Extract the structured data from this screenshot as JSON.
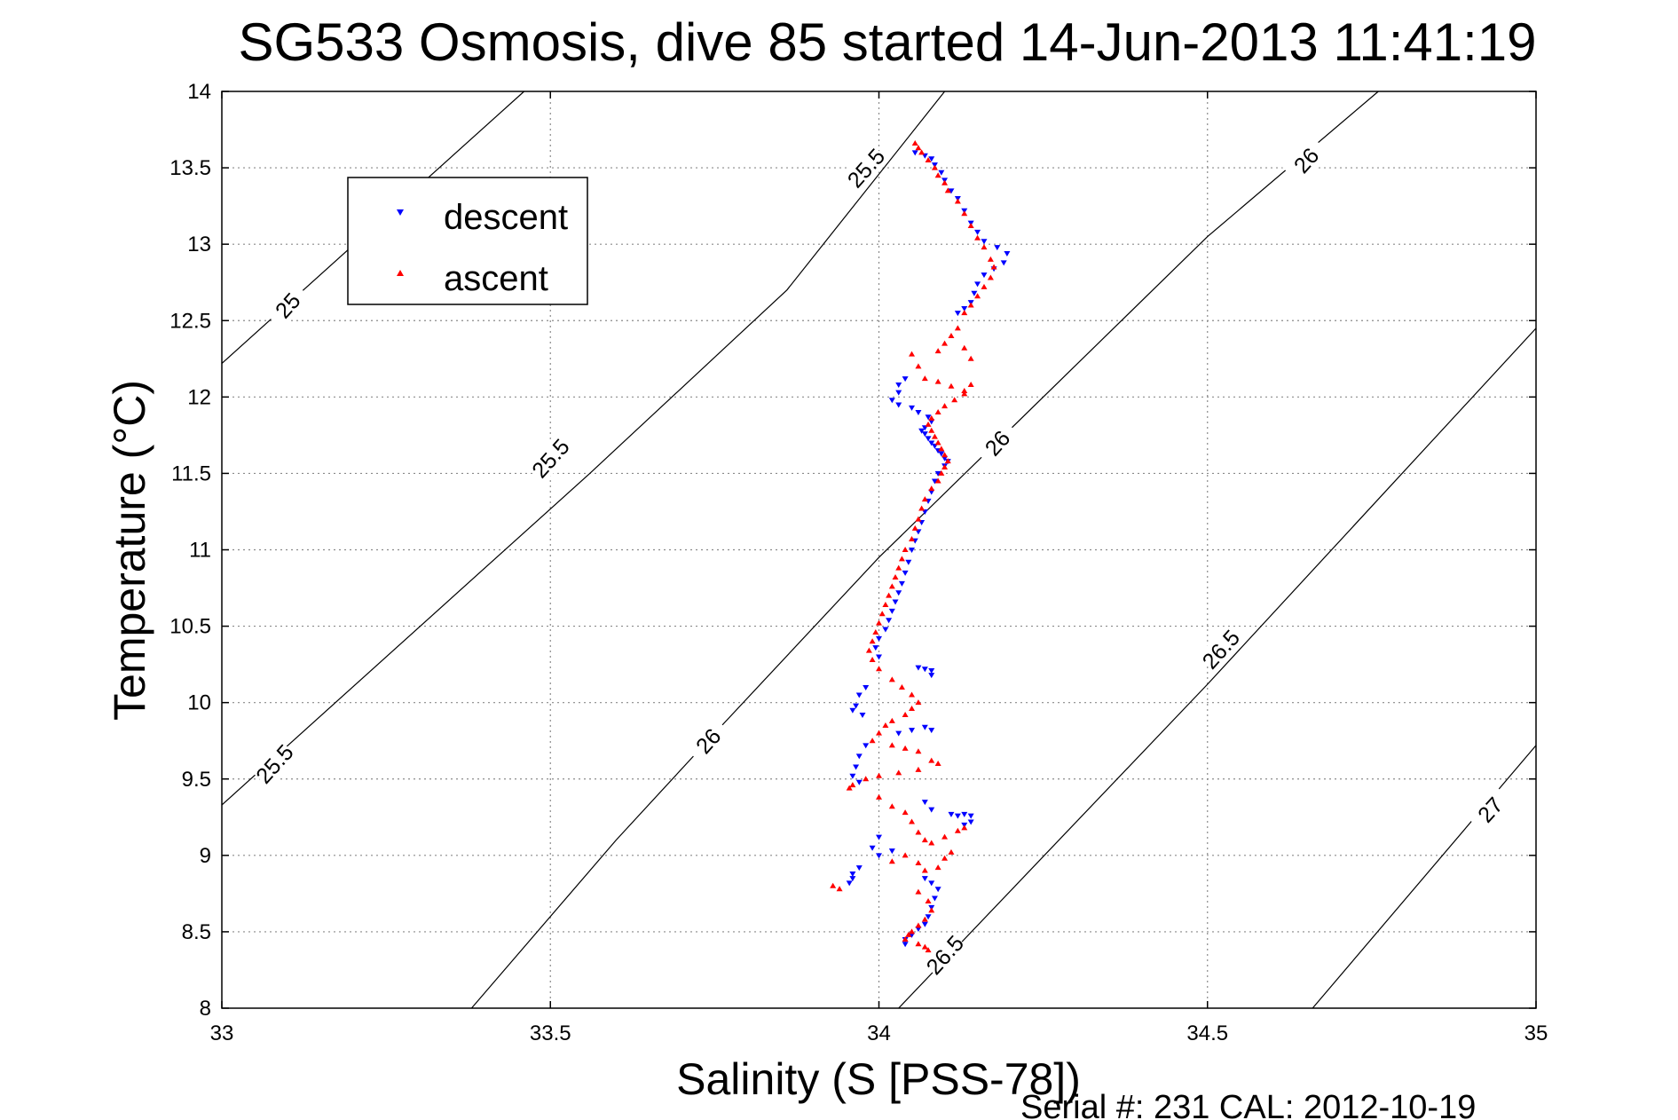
{
  "chart_data": {
    "type": "scatter",
    "title": "SG533 Osmosis, dive 85 started 14-Jun-2013 11:41:19",
    "xlabel": "Salinity (S [PSS-78])",
    "ylabel": "Temperature (°C)",
    "xlim": [
      33,
      35
    ],
    "ylim": [
      8,
      14
    ],
    "x_ticks": [
      "33",
      "33.5",
      "34",
      "34.5",
      "35"
    ],
    "y_ticks": [
      "8",
      "8.5",
      "9",
      "9.5",
      "10",
      "10.5",
      "11",
      "11.5",
      "12",
      "12.5",
      "13",
      "13.5",
      "14"
    ],
    "grid": true,
    "legend_placement": "upper-left",
    "footer": "Serial #: 231  CAL: 2012-10-19",
    "isopycnals": [
      {
        "label": "25",
        "points": [
          [
            33.0,
            12.22
          ],
          [
            33.46,
            14.0
          ]
        ],
        "label_at": [
          33.1,
          12.6
        ]
      },
      {
        "label": "25.5",
        "points": [
          [
            33.0,
            9.33
          ],
          [
            33.56,
            11.5
          ],
          [
            33.86,
            12.7
          ],
          [
            34.1,
            14.0
          ]
        ],
        "label_at": [
          33.5,
          11.6
        ]
      },
      {
        "label": "25.5",
        "label_at": [
          33.08,
          9.6
        ]
      },
      {
        "label": "25.5",
        "label_at": [
          33.98,
          13.5
        ]
      },
      {
        "label": "26",
        "points": [
          [
            33.38,
            8.0
          ],
          [
            33.6,
            9.1
          ],
          [
            33.75,
            9.8
          ],
          [
            34.0,
            10.95
          ],
          [
            34.5,
            13.05
          ],
          [
            34.76,
            14.0
          ]
        ],
        "label_at": [
          33.74,
          9.75
        ]
      },
      {
        "label": "26",
        "label_at": [
          34.18,
          11.7
        ]
      },
      {
        "label": "26",
        "label_at": [
          34.65,
          13.55
        ]
      },
      {
        "label": "26.5",
        "points": [
          [
            34.03,
            8.0
          ],
          [
            34.5,
            10.12
          ],
          [
            35.0,
            12.45
          ]
        ],
        "label_at": [
          34.1,
          8.35
        ]
      },
      {
        "label": "26.5",
        "label_at": [
          34.52,
          10.35
        ]
      },
      {
        "label": "27",
        "points": [
          [
            34.66,
            8.0
          ],
          [
            35.0,
            9.72
          ]
        ],
        "label_at": [
          34.93,
          9.3
        ]
      }
    ],
    "series": [
      {
        "name": "descent",
        "color": "#0000ff",
        "marker": "triangle-down",
        "points": [
          [
            34.055,
            13.6
          ],
          [
            34.07,
            13.58
          ],
          [
            34.08,
            13.56
          ],
          [
            34.085,
            13.52
          ],
          [
            34.095,
            13.47
          ],
          [
            34.1,
            13.42
          ],
          [
            34.11,
            13.35
          ],
          [
            34.12,
            13.3
          ],
          [
            34.13,
            13.22
          ],
          [
            34.14,
            13.14
          ],
          [
            34.15,
            13.08
          ],
          [
            34.16,
            13.02
          ],
          [
            34.18,
            12.98
          ],
          [
            34.195,
            12.94
          ],
          [
            34.19,
            12.88
          ],
          [
            34.175,
            12.84
          ],
          [
            34.16,
            12.8
          ],
          [
            34.15,
            12.74
          ],
          [
            34.145,
            12.68
          ],
          [
            34.14,
            12.62
          ],
          [
            34.13,
            12.58
          ],
          [
            34.12,
            12.55
          ],
          [
            34.04,
            12.12
          ],
          [
            34.03,
            12.08
          ],
          [
            34.03,
            12.03
          ],
          [
            34.02,
            11.98
          ],
          [
            34.03,
            11.95
          ],
          [
            34.05,
            11.93
          ],
          [
            34.06,
            11.9
          ],
          [
            34.075,
            11.87
          ],
          [
            34.08,
            11.84
          ],
          [
            34.07,
            11.8
          ],
          [
            34.065,
            11.78
          ],
          [
            34.07,
            11.76
          ],
          [
            34.075,
            11.73
          ],
          [
            34.08,
            11.7
          ],
          [
            34.085,
            11.68
          ],
          [
            34.09,
            11.65
          ],
          [
            34.095,
            11.63
          ],
          [
            34.1,
            11.6
          ],
          [
            34.105,
            11.58
          ],
          [
            34.1,
            11.55
          ],
          [
            34.09,
            11.5
          ],
          [
            34.085,
            11.45
          ],
          [
            34.08,
            11.38
          ],
          [
            34.075,
            11.32
          ],
          [
            34.07,
            11.25
          ],
          [
            34.065,
            11.18
          ],
          [
            34.06,
            11.12
          ],
          [
            34.055,
            11.06
          ],
          [
            34.05,
            11.0
          ],
          [
            34.045,
            10.92
          ],
          [
            34.04,
            10.85
          ],
          [
            34.035,
            10.78
          ],
          [
            34.03,
            10.72
          ],
          [
            34.025,
            10.66
          ],
          [
            34.02,
            10.6
          ],
          [
            34.015,
            10.54
          ],
          [
            34.01,
            10.48
          ],
          [
            34.0,
            10.42
          ],
          [
            33.995,
            10.36
          ],
          [
            34.0,
            10.3
          ],
          [
            34.06,
            10.23
          ],
          [
            34.07,
            10.22
          ],
          [
            34.08,
            10.21
          ],
          [
            34.08,
            10.18
          ],
          [
            33.98,
            10.1
          ],
          [
            33.97,
            10.05
          ],
          [
            33.965,
            9.98
          ],
          [
            33.96,
            9.95
          ],
          [
            33.975,
            9.92
          ],
          [
            34.03,
            9.8
          ],
          [
            34.05,
            9.82
          ],
          [
            34.07,
            9.84
          ],
          [
            34.08,
            9.82
          ],
          [
            33.98,
            9.72
          ],
          [
            33.97,
            9.65
          ],
          [
            33.965,
            9.58
          ],
          [
            33.96,
            9.52
          ],
          [
            33.97,
            9.48
          ],
          [
            34.07,
            9.35
          ],
          [
            34.08,
            9.3
          ],
          [
            34.11,
            9.27
          ],
          [
            34.12,
            9.26
          ],
          [
            34.13,
            9.27
          ],
          [
            34.14,
            9.26
          ],
          [
            34.14,
            9.22
          ],
          [
            34.13,
            9.2
          ],
          [
            34.0,
            9.12
          ],
          [
            33.99,
            9.05
          ],
          [
            34.0,
            9.0
          ],
          [
            34.02,
            9.03
          ],
          [
            33.97,
            8.92
          ],
          [
            33.96,
            8.88
          ],
          [
            33.96,
            8.85
          ],
          [
            33.955,
            8.82
          ],
          [
            34.07,
            8.85
          ],
          [
            34.08,
            8.82
          ],
          [
            34.09,
            8.78
          ],
          [
            34.085,
            8.72
          ],
          [
            34.08,
            8.66
          ],
          [
            34.075,
            8.6
          ],
          [
            34.07,
            8.55
          ],
          [
            34.06,
            8.52
          ],
          [
            34.05,
            8.48
          ],
          [
            34.04,
            8.45
          ],
          [
            34.04,
            8.42
          ]
        ]
      },
      {
        "name": "ascent",
        "color": "#ff0000",
        "marker": "triangle-up",
        "points": [
          [
            34.055,
            13.66
          ],
          [
            34.06,
            13.63
          ],
          [
            34.065,
            13.6
          ],
          [
            34.075,
            13.55
          ],
          [
            34.085,
            13.5
          ],
          [
            34.09,
            13.45
          ],
          [
            34.1,
            13.4
          ],
          [
            34.105,
            13.35
          ],
          [
            34.12,
            13.28
          ],
          [
            34.13,
            13.2
          ],
          [
            34.14,
            13.12
          ],
          [
            34.15,
            13.04
          ],
          [
            34.16,
            12.98
          ],
          [
            34.17,
            12.9
          ],
          [
            34.175,
            12.85
          ],
          [
            34.17,
            12.78
          ],
          [
            34.16,
            12.72
          ],
          [
            34.15,
            12.66
          ],
          [
            34.14,
            12.6
          ],
          [
            34.13,
            12.55
          ],
          [
            34.12,
            12.45
          ],
          [
            34.11,
            12.4
          ],
          [
            34.1,
            12.35
          ],
          [
            34.09,
            12.3
          ],
          [
            34.13,
            12.32
          ],
          [
            34.14,
            12.25
          ],
          [
            34.05,
            12.28
          ],
          [
            34.06,
            12.2
          ],
          [
            34.07,
            12.12
          ],
          [
            34.09,
            12.1
          ],
          [
            34.11,
            12.07
          ],
          [
            34.13,
            12.04
          ],
          [
            34.14,
            12.08
          ],
          [
            34.13,
            12.02
          ],
          [
            34.115,
            11.98
          ],
          [
            34.1,
            11.94
          ],
          [
            34.09,
            11.9
          ],
          [
            34.08,
            11.86
          ],
          [
            34.075,
            11.82
          ],
          [
            34.08,
            11.78
          ],
          [
            34.085,
            11.74
          ],
          [
            34.09,
            11.7
          ],
          [
            34.095,
            11.66
          ],
          [
            34.1,
            11.62
          ],
          [
            34.105,
            11.58
          ],
          [
            34.1,
            11.54
          ],
          [
            34.095,
            11.5
          ],
          [
            34.09,
            11.45
          ],
          [
            34.08,
            11.4
          ],
          [
            34.07,
            11.33
          ],
          [
            34.065,
            11.27
          ],
          [
            34.06,
            11.2
          ],
          [
            34.055,
            11.14
          ],
          [
            34.05,
            11.07
          ],
          [
            34.04,
            11.0
          ],
          [
            34.035,
            10.94
          ],
          [
            34.03,
            10.88
          ],
          [
            34.025,
            10.82
          ],
          [
            34.02,
            10.76
          ],
          [
            34.015,
            10.7
          ],
          [
            34.01,
            10.64
          ],
          [
            34.005,
            10.58
          ],
          [
            34.0,
            10.52
          ],
          [
            33.995,
            10.46
          ],
          [
            33.99,
            10.4
          ],
          [
            33.985,
            10.34
          ],
          [
            33.99,
            10.28
          ],
          [
            34.0,
            10.22
          ],
          [
            34.02,
            10.15
          ],
          [
            34.035,
            10.1
          ],
          [
            34.05,
            10.05
          ],
          [
            34.06,
            10.0
          ],
          [
            34.05,
            9.96
          ],
          [
            34.04,
            9.92
          ],
          [
            34.02,
            9.88
          ],
          [
            34.01,
            9.85
          ],
          [
            34.0,
            9.8
          ],
          [
            33.99,
            9.75
          ],
          [
            34.02,
            9.72
          ],
          [
            34.04,
            9.7
          ],
          [
            34.06,
            9.68
          ],
          [
            34.08,
            9.62
          ],
          [
            34.09,
            9.6
          ],
          [
            34.06,
            9.56
          ],
          [
            34.03,
            9.54
          ],
          [
            34.0,
            9.52
          ],
          [
            33.98,
            9.5
          ],
          [
            33.96,
            9.46
          ],
          [
            33.955,
            9.44
          ],
          [
            34.0,
            9.38
          ],
          [
            34.02,
            9.32
          ],
          [
            34.04,
            9.28
          ],
          [
            34.05,
            9.22
          ],
          [
            34.06,
            9.15
          ],
          [
            34.07,
            9.1
          ],
          [
            34.08,
            9.08
          ],
          [
            34.1,
            9.12
          ],
          [
            34.12,
            9.16
          ],
          [
            34.13,
            9.18
          ],
          [
            34.11,
            9.02
          ],
          [
            34.1,
            8.98
          ],
          [
            34.09,
            8.92
          ],
          [
            34.07,
            8.9
          ],
          [
            34.06,
            8.95
          ],
          [
            34.04,
            9.0
          ],
          [
            34.02,
            8.96
          ],
          [
            33.93,
            8.8
          ],
          [
            33.94,
            8.78
          ],
          [
            34.06,
            8.76
          ],
          [
            34.075,
            8.7
          ],
          [
            34.08,
            8.64
          ],
          [
            34.07,
            8.58
          ],
          [
            34.06,
            8.54
          ],
          [
            34.05,
            8.5
          ],
          [
            34.045,
            8.48
          ],
          [
            34.04,
            8.45
          ],
          [
            34.06,
            8.42
          ],
          [
            34.07,
            8.4
          ],
          [
            34.075,
            8.38
          ]
        ]
      }
    ]
  }
}
